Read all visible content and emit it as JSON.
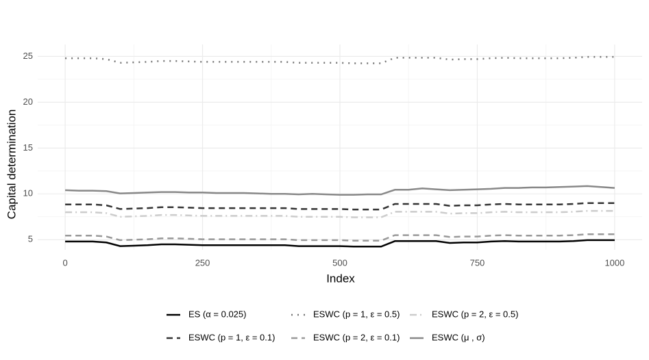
{
  "chart_data": {
    "type": "line",
    "x_label": "Index",
    "y_label": "Capital determination",
    "x": [
      0,
      25,
      50,
      75,
      100,
      125,
      150,
      175,
      200,
      225,
      250,
      275,
      300,
      325,
      350,
      375,
      400,
      425,
      450,
      475,
      500,
      525,
      550,
      575,
      600,
      625,
      650,
      675,
      700,
      725,
      750,
      775,
      800,
      825,
      850,
      875,
      900,
      925,
      950,
      975,
      1000
    ],
    "xlim": [
      -50,
      1050
    ],
    "xticks": [
      0,
      250,
      500,
      750,
      1000
    ],
    "ylim": [
      3.9,
      26.3
    ],
    "yticks": [
      5,
      10,
      15,
      20,
      25
    ],
    "grid": true,
    "legend": "bottom",
    "series": [
      {
        "name": "ES (α = 0.025)",
        "color": "#000000",
        "dash": "solid",
        "values": [
          4.8,
          4.8,
          4.8,
          4.7,
          4.3,
          4.35,
          4.4,
          4.5,
          4.5,
          4.45,
          4.4,
          4.4,
          4.4,
          4.4,
          4.4,
          4.4,
          4.4,
          4.3,
          4.3,
          4.3,
          4.3,
          4.25,
          4.25,
          4.25,
          4.85,
          4.85,
          4.85,
          4.85,
          4.65,
          4.7,
          4.7,
          4.8,
          4.85,
          4.8,
          4.8,
          4.8,
          4.8,
          4.85,
          4.95,
          4.95,
          4.95
        ]
      },
      {
        "name": "ESWC (p = 1, ε = 0.5)",
        "color": "#777777",
        "dash": "dotted",
        "values": [
          24.8,
          24.8,
          24.8,
          24.7,
          24.3,
          24.35,
          24.4,
          24.5,
          24.5,
          24.45,
          24.4,
          24.4,
          24.4,
          24.4,
          24.4,
          24.4,
          24.4,
          24.3,
          24.3,
          24.3,
          24.3,
          24.25,
          24.25,
          24.25,
          24.85,
          24.85,
          24.85,
          24.85,
          24.65,
          24.7,
          24.7,
          24.8,
          24.85,
          24.8,
          24.8,
          24.8,
          24.8,
          24.85,
          24.95,
          24.95,
          24.95
        ]
      },
      {
        "name": "ESWC (p = 2, ε = 0.5)",
        "color": "#cccccc",
        "dash": "dashdot",
        "values": [
          8.0,
          8.0,
          8.0,
          7.9,
          7.5,
          7.55,
          7.6,
          7.7,
          7.7,
          7.65,
          7.6,
          7.6,
          7.6,
          7.6,
          7.6,
          7.6,
          7.6,
          7.5,
          7.5,
          7.5,
          7.5,
          7.45,
          7.45,
          7.45,
          8.05,
          8.05,
          8.05,
          8.05,
          7.85,
          7.9,
          7.9,
          8.0,
          8.05,
          8.0,
          8.0,
          8.0,
          8.0,
          8.05,
          8.15,
          8.15,
          8.15
        ]
      },
      {
        "name": "ESWC (p = 1, ε = 0.1)",
        "color": "#333333",
        "dash": "dashed",
        "values": [
          8.85,
          8.85,
          8.85,
          8.75,
          8.35,
          8.4,
          8.45,
          8.55,
          8.55,
          8.5,
          8.45,
          8.45,
          8.45,
          8.45,
          8.45,
          8.45,
          8.45,
          8.35,
          8.35,
          8.35,
          8.35,
          8.3,
          8.3,
          8.3,
          8.9,
          8.9,
          8.9,
          8.9,
          8.7,
          8.75,
          8.75,
          8.85,
          8.9,
          8.85,
          8.85,
          8.85,
          8.85,
          8.9,
          9.0,
          9.0,
          9.0
        ]
      },
      {
        "name": "ESWC (p = 2, ε = 0.1)",
        "color": "#999999",
        "dash": "dashed",
        "values": [
          5.45,
          5.45,
          5.45,
          5.35,
          4.95,
          5.0,
          5.05,
          5.15,
          5.15,
          5.1,
          5.05,
          5.05,
          5.05,
          5.05,
          5.05,
          5.05,
          5.05,
          4.95,
          4.95,
          4.95,
          4.95,
          4.9,
          4.9,
          4.9,
          5.5,
          5.5,
          5.5,
          5.5,
          5.3,
          5.35,
          5.35,
          5.45,
          5.5,
          5.45,
          5.45,
          5.45,
          5.45,
          5.5,
          5.6,
          5.6,
          5.6
        ]
      },
      {
        "name": "ESWC (μ , σ)",
        "color": "#888888",
        "dash": "solid",
        "values": [
          10.4,
          10.35,
          10.35,
          10.3,
          10.05,
          10.1,
          10.15,
          10.2,
          10.2,
          10.15,
          10.15,
          10.1,
          10.1,
          10.1,
          10.05,
          10.0,
          10.0,
          9.95,
          10.0,
          9.95,
          9.9,
          9.9,
          9.95,
          9.95,
          10.45,
          10.45,
          10.6,
          10.5,
          10.4,
          10.45,
          10.5,
          10.55,
          10.65,
          10.65,
          10.7,
          10.7,
          10.75,
          10.8,
          10.85,
          10.75,
          10.65
        ]
      }
    ]
  }
}
